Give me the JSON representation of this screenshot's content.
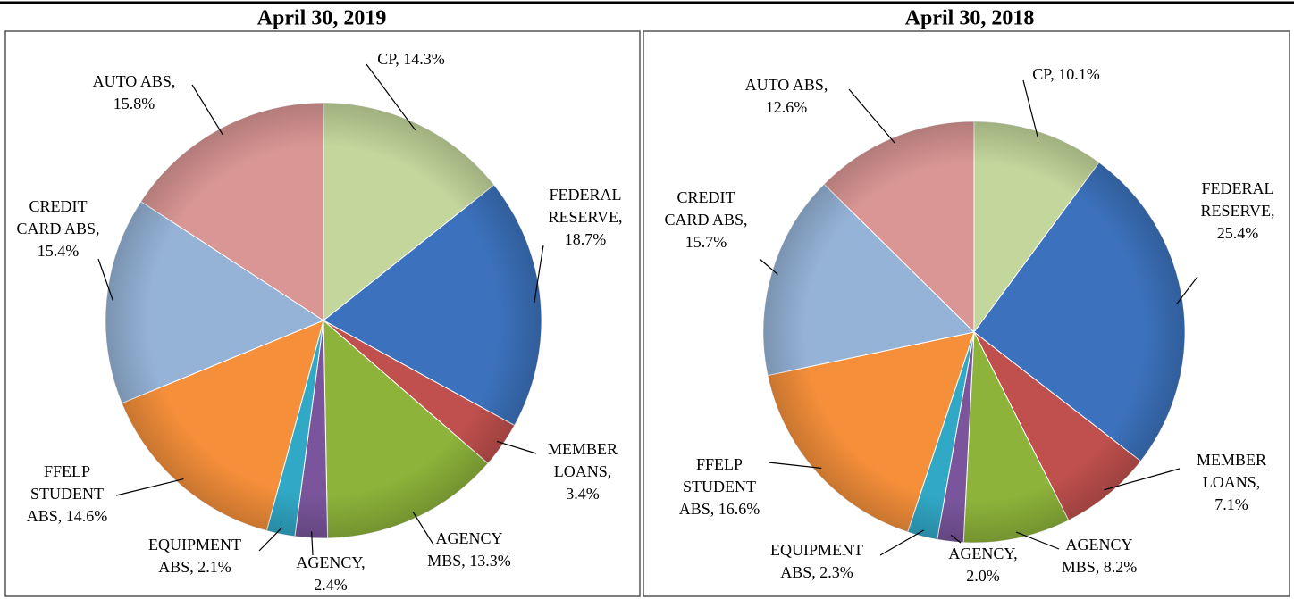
{
  "chart_data": [
    {
      "type": "pie",
      "title": "April 30, 2019",
      "labels": [
        [
          "CP, 14.3%"
        ],
        [
          "FEDERAL",
          "RESERVE,",
          "18.7%"
        ],
        [
          "MEMBER",
          "LOANS,",
          "3.4%"
        ],
        [
          "AGENCY",
          "MBS, 13.3%"
        ],
        [
          "AGENCY,",
          "2.4%"
        ],
        [
          "EQUIPMENT",
          "ABS, 2.1%"
        ],
        [
          "FFELP",
          "STUDENT",
          "ABS, 14.6%"
        ],
        [
          "CREDIT",
          "CARD ABS,",
          "15.4%"
        ],
        [
          "AUTO ABS,",
          "15.8%"
        ]
      ],
      "values": [
        14.3,
        18.7,
        3.4,
        13.3,
        2.4,
        2.1,
        14.6,
        15.4,
        15.8
      ],
      "colors": [
        "#c3d69b",
        "#3c72bd",
        "#c0504d",
        "#8db33a",
        "#7a559c",
        "#31a8c6",
        "#f58f3a",
        "#95b3d7",
        "#d99694"
      ]
    },
    {
      "type": "pie",
      "title": "April 30, 2018",
      "labels": [
        [
          "CP, 10.1%"
        ],
        [
          "FEDERAL",
          "RESERVE,",
          "25.4%"
        ],
        [
          "MEMBER",
          "LOANS,",
          "7.1%"
        ],
        [
          "AGENCY",
          "MBS, 8.2%"
        ],
        [
          "AGENCY,",
          "2.0%"
        ],
        [
          "EQUIPMENT",
          "ABS, 2.3%"
        ],
        [
          "FFELP",
          "STUDENT",
          "ABS, 16.6%"
        ],
        [
          "CREDIT",
          "CARD ABS,",
          "15.7%"
        ],
        [
          "AUTO ABS,",
          "12.6%"
        ]
      ],
      "values": [
        10.1,
        25.4,
        7.1,
        8.2,
        2.0,
        2.3,
        16.6,
        15.7,
        12.6
      ],
      "colors": [
        "#c3d69b",
        "#3c72bd",
        "#c0504d",
        "#8db33a",
        "#7a559c",
        "#31a8c6",
        "#f58f3a",
        "#95b3d7",
        "#d99694"
      ]
    }
  ]
}
